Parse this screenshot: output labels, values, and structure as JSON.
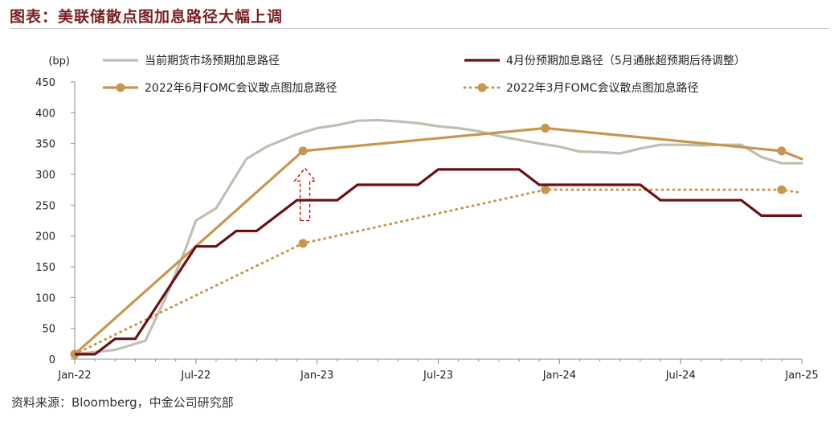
{
  "title": "图表：美联储散点图加息路径大幅上调",
  "source": "资料来源：Bloomberg，中金公司研究部",
  "chart_data": {
    "type": "line",
    "unit_label": "(bp)",
    "ylim": [
      0,
      450
    ],
    "yticks": [
      0,
      50,
      100,
      150,
      200,
      250,
      300,
      350,
      400,
      450
    ],
    "xlim": [
      0,
      36
    ],
    "xticks": [
      {
        "label": "Jan-22",
        "x": 0
      },
      {
        "label": "Jul-22",
        "x": 6
      },
      {
        "label": "Jan-23",
        "x": 12
      },
      {
        "label": "Jul-23",
        "x": 18
      },
      {
        "label": "Jan-24",
        "x": 24
      },
      {
        "label": "Jul-24",
        "x": 30
      },
      {
        "label": "Jan-25",
        "x": 36
      }
    ],
    "grid": false,
    "legend_position": "top",
    "series": [
      {
        "name": "当前期货市场预期加息路径",
        "color": "#bfbfb1",
        "style": "solid",
        "points": [
          [
            0,
            8
          ],
          [
            2,
            15
          ],
          [
            3.5,
            30
          ],
          [
            4.5,
            100
          ],
          [
            5.5,
            180
          ],
          [
            6,
            225
          ],
          [
            7,
            245
          ],
          [
            8.5,
            325
          ],
          [
            9.5,
            345
          ],
          [
            11,
            365
          ],
          [
            12,
            375
          ],
          [
            13,
            380
          ],
          [
            14,
            387
          ],
          [
            15,
            388
          ],
          [
            16,
            386
          ],
          [
            17,
            383
          ],
          [
            18,
            378
          ],
          [
            19,
            375
          ],
          [
            20,
            370
          ],
          [
            21,
            362
          ],
          [
            22,
            356
          ],
          [
            23,
            350
          ],
          [
            24,
            345
          ],
          [
            25,
            337
          ],
          [
            26,
            336
          ],
          [
            27,
            334
          ],
          [
            28,
            342
          ],
          [
            29,
            348
          ],
          [
            30,
            348
          ],
          [
            31,
            347
          ],
          [
            32,
            348
          ],
          [
            33,
            348
          ],
          [
            34,
            328
          ],
          [
            35,
            318
          ],
          [
            36,
            318
          ]
        ]
      },
      {
        "name": "4月份预期加息路径（5月通胀超预期后待调整）",
        "color": "#6b0f14",
        "style": "step",
        "points": [
          [
            0,
            8
          ],
          [
            1,
            8
          ],
          [
            2,
            33
          ],
          [
            3,
            33
          ],
          [
            4,
            83
          ],
          [
            5,
            133
          ],
          [
            6,
            183
          ],
          [
            7,
            183
          ],
          [
            8,
            208
          ],
          [
            9,
            208
          ],
          [
            10,
            233
          ],
          [
            11,
            258
          ],
          [
            12,
            258
          ],
          [
            13,
            258
          ],
          [
            14,
            283
          ],
          [
            15,
            283
          ],
          [
            16,
            283
          ],
          [
            17,
            283
          ],
          [
            18,
            308
          ],
          [
            19,
            308
          ],
          [
            20,
            308
          ],
          [
            21,
            308
          ],
          [
            22,
            308
          ],
          [
            23,
            283
          ],
          [
            24,
            283
          ],
          [
            25,
            283
          ],
          [
            26,
            283
          ],
          [
            27,
            283
          ],
          [
            28,
            283
          ],
          [
            29,
            258
          ],
          [
            30,
            258
          ],
          [
            31,
            258
          ],
          [
            32,
            258
          ],
          [
            33,
            258
          ],
          [
            34,
            233
          ],
          [
            35,
            233
          ],
          [
            36,
            233
          ]
        ]
      },
      {
        "name": "2022年6月FOMC会议散点图加息路径",
        "color": "#c8964f",
        "style": "solid-marker",
        "points": [
          [
            0,
            8
          ],
          [
            11.3,
            338
          ],
          [
            23.3,
            375
          ],
          [
            35,
            338
          ],
          [
            36,
            325
          ]
        ],
        "markers": [
          [
            0,
            8
          ],
          [
            11.3,
            338
          ],
          [
            23.3,
            375
          ],
          [
            35,
            338
          ]
        ]
      },
      {
        "name": "2022年3月FOMC会议散点图加息路径",
        "color": "#c8964f",
        "style": "dotted-marker",
        "points": [
          [
            0,
            8
          ],
          [
            11.3,
            188
          ],
          [
            23.3,
            275
          ],
          [
            35,
            275
          ],
          [
            36,
            270
          ]
        ],
        "markers": [
          [
            0,
            8
          ],
          [
            11.3,
            188
          ],
          [
            23.3,
            275
          ],
          [
            35,
            275
          ]
        ]
      }
    ],
    "annotation": {
      "type": "up-arrow",
      "x": 11.4,
      "y_from": 225,
      "y_to": 310,
      "color": "#c00000",
      "style": "dashed"
    }
  }
}
